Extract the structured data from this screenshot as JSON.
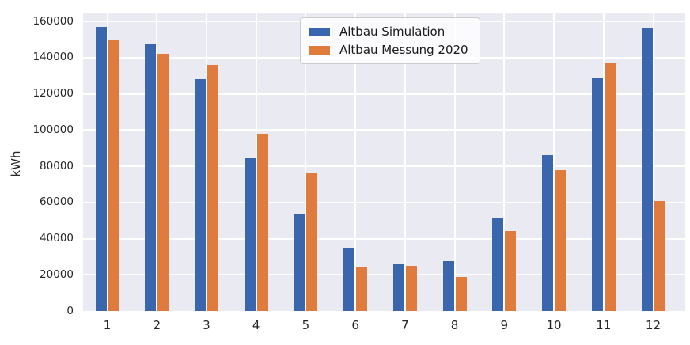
{
  "figure": {
    "y_axis_label": "kWh"
  },
  "chart_data": {
    "type": "bar",
    "title": "",
    "xlabel": "",
    "ylabel": "kWh",
    "categories": [
      "1",
      "2",
      "3",
      "4",
      "5",
      "6",
      "7",
      "8",
      "9",
      "10",
      "11",
      "12"
    ],
    "series": [
      {
        "name": "Altbau Simulation",
        "color": "#3a66ad",
        "values": [
          157000,
          148000,
          128000,
          84500,
          53500,
          35000,
          26000,
          27500,
          51000,
          86000,
          129000,
          156500
        ]
      },
      {
        "name": "Altbau Messung 2020",
        "color": "#de7b3d",
        "values": [
          150000,
          142000,
          136000,
          98000,
          76000,
          24000,
          25000,
          19000,
          44000,
          78000,
          137000,
          61000
        ]
      }
    ],
    "yticks": [
      0,
      20000,
      40000,
      60000,
      80000,
      100000,
      120000,
      140000,
      160000
    ],
    "ylim": [
      0,
      164850
    ],
    "grid": true,
    "gridline_color": "#ffffff",
    "plot_background": "#eaeaf2",
    "legend_position": "upper center"
  }
}
